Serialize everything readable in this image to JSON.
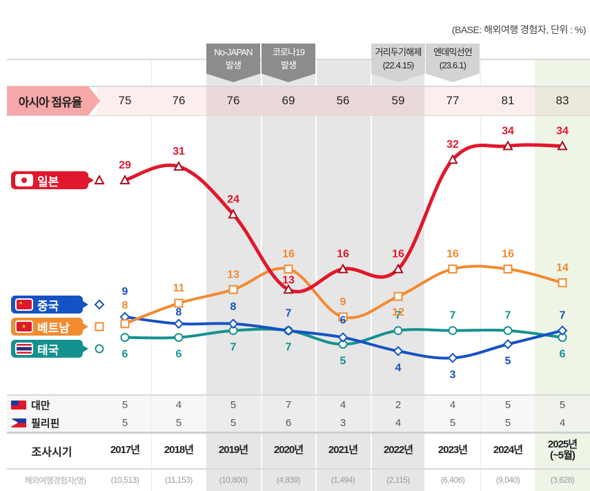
{
  "base_note": "(BASE: 해외여행 경험자, 단위 : %)",
  "events": [
    {
      "line1": "No-JAPAN",
      "line2": "발생",
      "column": 2,
      "style": "dark"
    },
    {
      "line1": "코로나19",
      "line2": "발생",
      "column": 3,
      "style": "dark"
    },
    {
      "line1": "거리두기해제",
      "line2": "(22.4.15)",
      "column": 5,
      "style": "light"
    },
    {
      "line1": "엔데믹선언",
      "line2": "(23.6.1)",
      "column": 6,
      "style": "light"
    }
  ],
  "asia_share": {
    "label": "아시아 점유율",
    "values": [
      "75",
      "76",
      "76",
      "69",
      "56",
      "59",
      "77",
      "81",
      "83"
    ]
  },
  "legend": {
    "japan": "일본",
    "china": "중국",
    "vietnam": "베트남",
    "thailand": "태국"
  },
  "other_rows": [
    {
      "label": "대만",
      "flag": "taiwan-flag-icon",
      "values": [
        "5",
        "4",
        "5",
        "7",
        "4",
        "2",
        "4",
        "5",
        "5"
      ]
    },
    {
      "label": "필리핀",
      "flag": "philippines-flag-icon",
      "values": [
        "5",
        "5",
        "5",
        "6",
        "3",
        "4",
        "5",
        "5",
        "4"
      ]
    }
  ],
  "period": {
    "label": "조사시기",
    "years": [
      {
        "line1": "2017년",
        "line2": ""
      },
      {
        "line1": "2018년",
        "line2": ""
      },
      {
        "line1": "2019년",
        "line2": ""
      },
      {
        "line1": "2020년",
        "line2": ""
      },
      {
        "line1": "2021년",
        "line2": ""
      },
      {
        "line1": "2022년",
        "line2": ""
      },
      {
        "line1": "2023년",
        "line2": ""
      },
      {
        "line1": "2024년",
        "line2": ""
      },
      {
        "line1": "2025년",
        "line2": "(~5월)"
      }
    ]
  },
  "respondents": {
    "label": "해외여행경험자(명)",
    "values": [
      "(10,513)",
      "(11,153)",
      "(10,800)",
      "(4,839)",
      "(1,494)",
      "(2,115)",
      "(6,406)",
      "(9,040)",
      "(3,628)"
    ]
  },
  "colors": {
    "japan": "#e0182d",
    "china": "#1552c4",
    "vietnam": "#f28a30",
    "thailand": "#14918f",
    "share_label_bg": "#f6a7a7",
    "covid_band": "#e6e6e6",
    "current_band": "#eef5e6"
  },
  "chart_data": {
    "type": "line",
    "title": "",
    "xlabel": "조사시기",
    "ylabel": "",
    "unit": "%",
    "categories": [
      "2017년",
      "2018년",
      "2019년",
      "2020년",
      "2021년",
      "2022년",
      "2023년",
      "2024년",
      "2025년 (~5월)"
    ],
    "series": [
      {
        "name": "일본",
        "key": "japan",
        "marker": "triangle",
        "values": [
          29,
          31,
          24,
          13,
          16,
          16,
          32,
          34,
          34
        ]
      },
      {
        "name": "베트남",
        "key": "vietnam",
        "marker": "square",
        "values": [
          8,
          11,
          13,
          16,
          9,
          12,
          16,
          16,
          14
        ]
      },
      {
        "name": "중국",
        "key": "china",
        "marker": "diamond",
        "values": [
          9,
          8,
          8,
          7,
          6,
          4,
          3,
          5,
          7
        ]
      },
      {
        "name": "태국",
        "key": "thailand",
        "marker": "circle",
        "values": [
          6,
          6,
          7,
          7,
          5,
          7,
          7,
          7,
          6
        ]
      }
    ],
    "legend_position": "left",
    "grid": false
  }
}
